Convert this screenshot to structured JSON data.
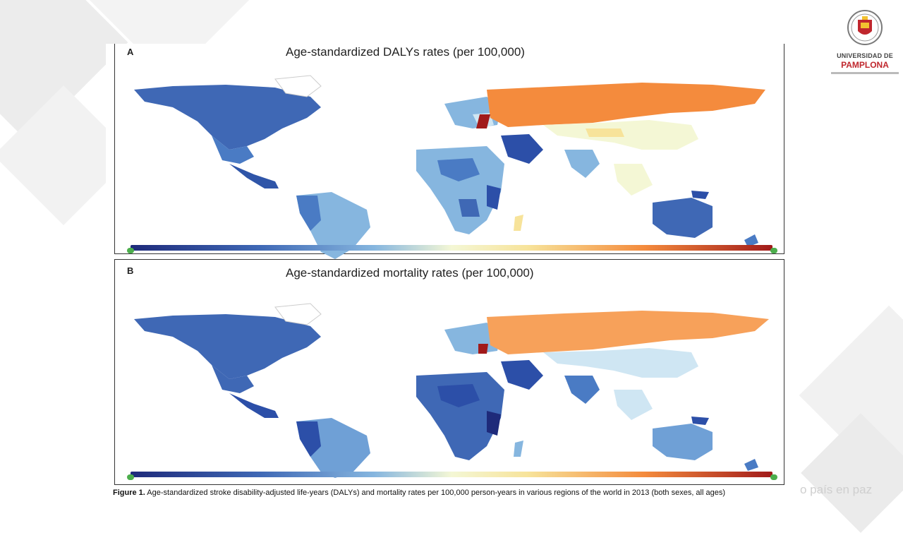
{
  "panels": [
    {
      "label": "A",
      "title": "Age-standardized DALYs rates (per 100,000)"
    },
    {
      "label": "B",
      "title": "Age-standardized mortality rates (per 100,000)"
    }
  ],
  "caption": {
    "figure_label": "Figure 1.",
    "text": "Age-standardized stroke disability-adjusted life-years (DALYs) and mortality rates per 100,000 person-years in various regions of the world in 2013 (both sexes, all ages)"
  },
  "logo": {
    "line1": "UNIVERSIDAD DE",
    "line2": "PAMPLONA"
  },
  "slogan": "o país en paz",
  "colors": {
    "deep_blue": "#2c4fa8",
    "mid_blue": "#4a7bc4",
    "light_blue": "#86b6df",
    "pale_blue": "#cfe6f3",
    "pale_yellow": "#f4f7d5",
    "yellow": "#f7e39a",
    "orange": "#f7a15a",
    "dark_orange": "#f48b3d",
    "dark_red": "#a11a1a",
    "brand_red": "#c0272d"
  }
}
